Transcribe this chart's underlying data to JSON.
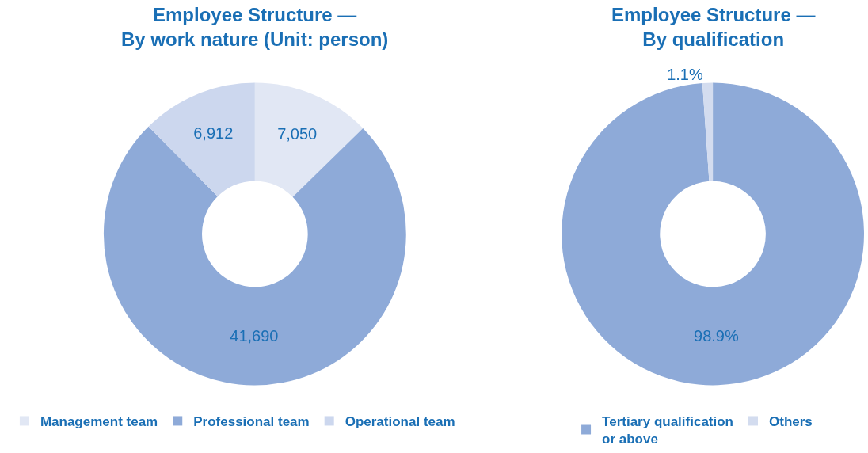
{
  "chart_data": [
    {
      "type": "donut",
      "title": "Employee Structure —\nBy work nature (Unit: person)",
      "categories": [
        "Management team",
        "Professional team",
        "Operational team"
      ],
      "values": [
        7050,
        41690,
        6912
      ],
      "colors": [
        "#e1e7f4",
        "#8eaad8",
        "#ccd7ee"
      ],
      "value_labels": [
        "7,050",
        "41,690",
        "6,912"
      ],
      "legend": "bottom"
    },
    {
      "type": "donut",
      "title": "Employee Structure —\nBy qualification",
      "categories": [
        "Tertiary qualification or above",
        "Others"
      ],
      "values": [
        98.9,
        1.1
      ],
      "colors": [
        "#8eaad8",
        "#d3dcef"
      ],
      "value_labels": [
        "98.9%",
        "1.1%"
      ],
      "legend": "bottom"
    }
  ]
}
